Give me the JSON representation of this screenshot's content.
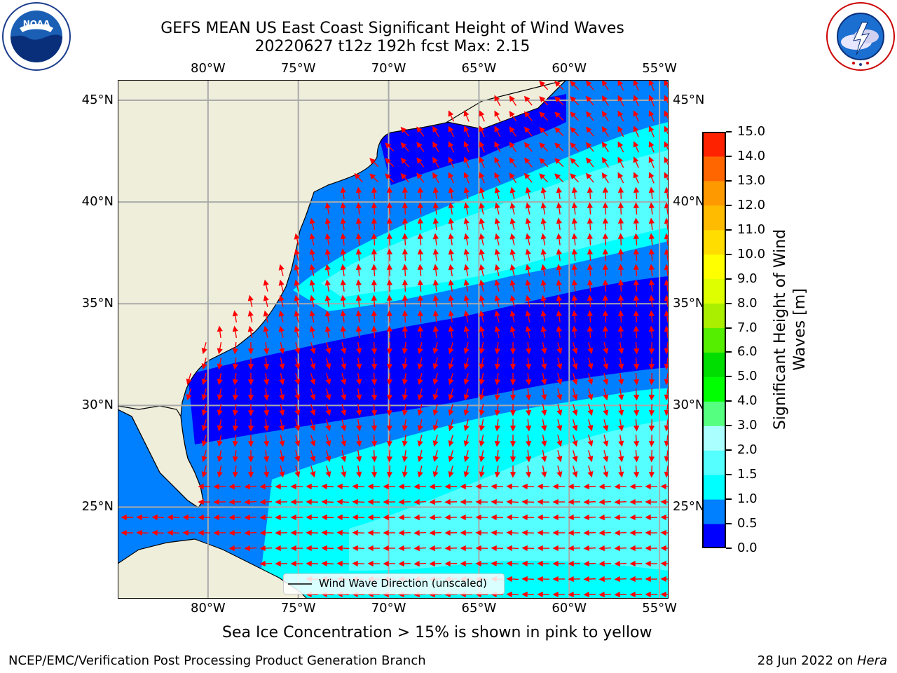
{
  "header": {
    "title_line1": "GEFS MEAN US East Coast Significant Height of Wind Waves",
    "title_line2": "20220627 t12z 192h fcst   Max: 2.15"
  },
  "logos": {
    "left": {
      "text": "NOAA",
      "ring_text": "NATIONAL OCEANIC AND ATMOSPHERIC ADMINISTRATION · U.S. DEPARTMENT OF COMMERCE"
    },
    "right": {
      "ring_text": "NATIONAL WEATHER SERVICE"
    }
  },
  "map": {
    "lon_ticks": [
      "80°W",
      "75°W",
      "70°W",
      "65°W",
      "60°W",
      "55°W"
    ],
    "lat_ticks": [
      "45°N",
      "40°N",
      "35°N",
      "30°N",
      "25°N"
    ],
    "lon_values": [
      -80,
      -75,
      -70,
      -65,
      -60,
      -55
    ],
    "lat_values": [
      45,
      40,
      35,
      30,
      25
    ],
    "extent": {
      "lon": [
        -85,
        -54.5
      ],
      "lat": [
        20.5,
        46
      ]
    },
    "legend_text": "Wind Wave Direction (unscaled)",
    "colors": {
      "land": "#EFEEDB",
      "arrow": "#FF0000",
      "grid": "#AAAAAA"
    }
  },
  "colorbar": {
    "label_line1": "Significant Height of Wind",
    "label_line2": "Waves [m]",
    "ticks": [
      "15.0",
      "14.0",
      "13.0",
      "12.0",
      "11.0",
      "10.0",
      "9.0",
      "8.0",
      "7.0",
      "6.0",
      "5.0",
      "4.0",
      "3.0",
      "2.0",
      "1.5",
      "1.0",
      "0.5",
      "0.0"
    ],
    "levels": [
      0.0,
      0.5,
      1.0,
      1.5,
      2.0,
      3.0,
      4.0,
      5.0,
      6.0,
      7.0,
      8.0,
      9.0,
      10.0,
      11.0,
      12.0,
      13.0,
      14.0,
      15.0
    ],
    "colors": [
      "#0000FF",
      "#0080FF",
      "#00FFFF",
      "#55FFFF",
      "#AAFFFF",
      "#55FF80",
      "#00FF00",
      "#00DD00",
      "#55EE00",
      "#AAEE00",
      "#DDFF00",
      "#FFFF00",
      "#FFDD00",
      "#FFBB00",
      "#FF9900",
      "#FF6600",
      "#FF2200"
    ]
  },
  "footer": {
    "sea_ice_note": "Sea Ice Concentration > 15% is shown in pink to yellow",
    "left": "NCEP/EMC/Verification Post Processing Product Generation Branch",
    "right_date": "28 Jun 2022 on ",
    "right_host": "Hera"
  }
}
